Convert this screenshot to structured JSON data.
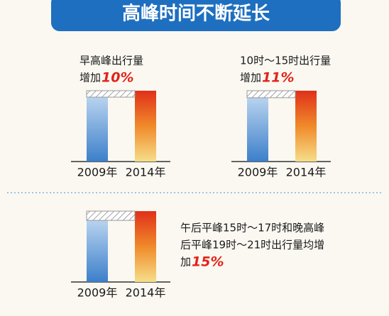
{
  "title": "高峰时间不断延长",
  "chart_data": [
    {
      "type": "bar",
      "categories": [
        "2009年",
        "2014年"
      ],
      "values": [
        100,
        110
      ],
      "annotation": [
        "早高峰出行量",
        "增加"
      ],
      "highlight": "10%"
    },
    {
      "type": "bar",
      "categories": [
        "2009年",
        "2014年"
      ],
      "values": [
        100,
        111
      ],
      "annotation": [
        "10时～15时出行量",
        "增加"
      ],
      "highlight": "11%"
    },
    {
      "type": "bar",
      "categories": [
        "2009年",
        "2014年"
      ],
      "values": [
        100,
        115
      ],
      "annotation": [
        "午后平峰15时～17时和晚高峰",
        "后平峰19时～21时出行量均增",
        "加"
      ],
      "highlight": "15%"
    }
  ]
}
